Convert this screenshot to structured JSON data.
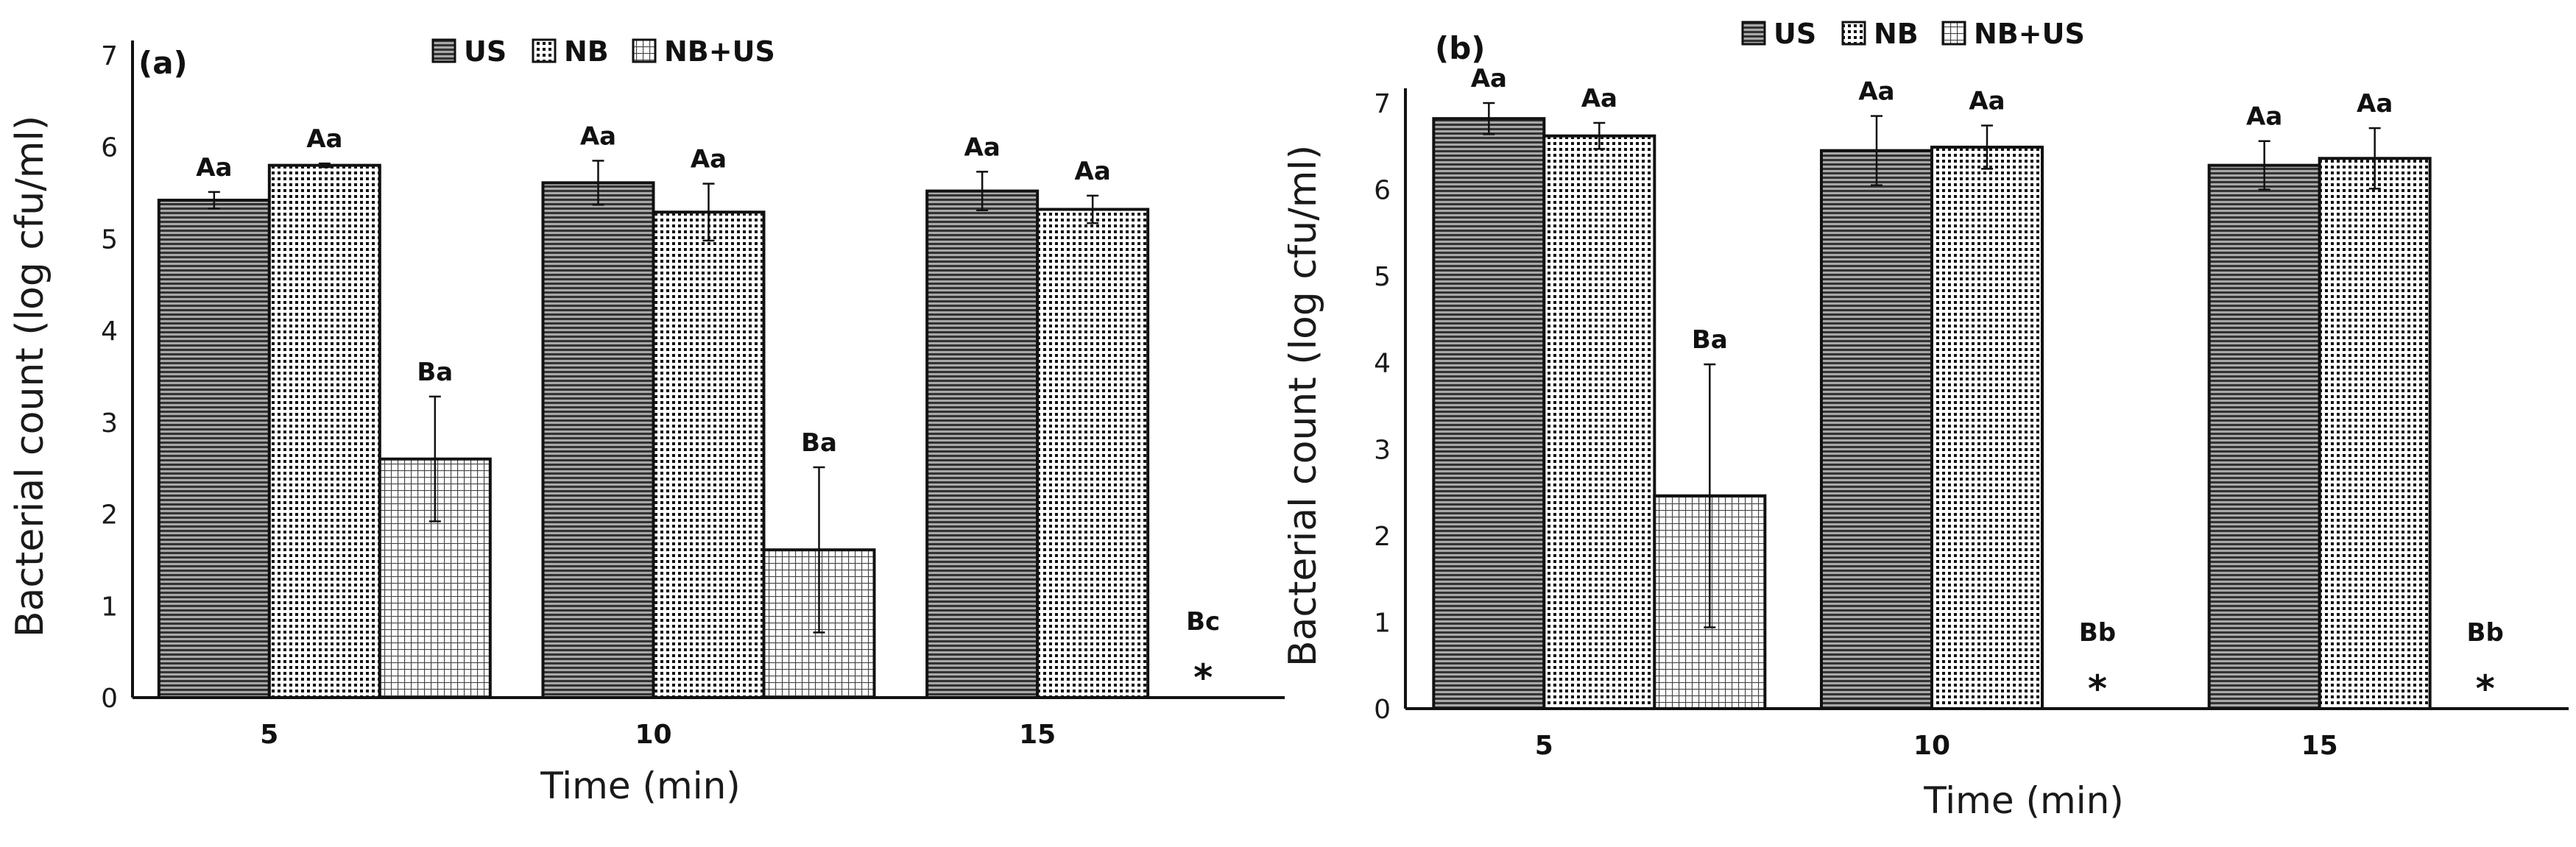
{
  "legend": [
    {
      "label": "US",
      "pattern": "hstripes"
    },
    {
      "label": "NB",
      "pattern": "dots"
    },
    {
      "label": "NB+US",
      "pattern": "grid"
    }
  ],
  "chart_data": [
    {
      "type": "bar",
      "panel_label": "(a)",
      "categories": [
        "5",
        "10",
        "15"
      ],
      "xlabel": "Time (min)",
      "ylabel": "Bacterial count (log cfu/ml)",
      "ylim": [
        0,
        7
      ],
      "yticks": [
        "0",
        "1",
        "2",
        "3",
        "4",
        "5",
        "6",
        "7"
      ],
      "series": [
        {
          "name": "US",
          "values": [
            5.42,
            5.61,
            5.52
          ],
          "errors": [
            0.09,
            0.24,
            0.21
          ],
          "letters": [
            "Aa",
            "Aa",
            "Aa"
          ]
        },
        {
          "name": "NB",
          "values": [
            5.8,
            5.29,
            5.32
          ],
          "errors": [
            0.02,
            0.31,
            0.15
          ],
          "letters": [
            "Aa",
            "Aa",
            "Aa"
          ]
        },
        {
          "name": "NB+US",
          "values": [
            2.6,
            1.61,
            null
          ],
          "errors": [
            0.68,
            0.9,
            null
          ],
          "letters": [
            "Ba",
            "Ba",
            "Bc"
          ]
        }
      ],
      "not_detected_marker": "*",
      "legend_position": "top-center",
      "grid": false
    },
    {
      "type": "bar",
      "panel_label": "(b)",
      "categories": [
        "5",
        "10",
        "15"
      ],
      "xlabel": "Time (min)",
      "ylabel": "Bacterial count (log cfu/ml)",
      "ylim": [
        0,
        7
      ],
      "yticks": [
        "0",
        "1",
        "2",
        "3",
        "4",
        "5",
        "6",
        "7"
      ],
      "series": [
        {
          "name": "US",
          "values": [
            6.82,
            6.45,
            6.28
          ],
          "errors": [
            0.18,
            0.4,
            0.28
          ],
          "letters": [
            "Aa",
            "Aa",
            "Aa"
          ]
        },
        {
          "name": "NB",
          "values": [
            6.62,
            6.49,
            6.36
          ],
          "errors": [
            0.15,
            0.25,
            0.35
          ],
          "letters": [
            "Aa",
            "Aa",
            "Aa"
          ]
        },
        {
          "name": "NB+US",
          "values": [
            2.46,
            null,
            null
          ],
          "errors": [
            1.52,
            null,
            null
          ],
          "letters": [
            "Ba",
            "Bb",
            "Bb"
          ]
        }
      ],
      "not_detected_marker": "*",
      "legend_position": "top-right",
      "grid": false
    }
  ]
}
